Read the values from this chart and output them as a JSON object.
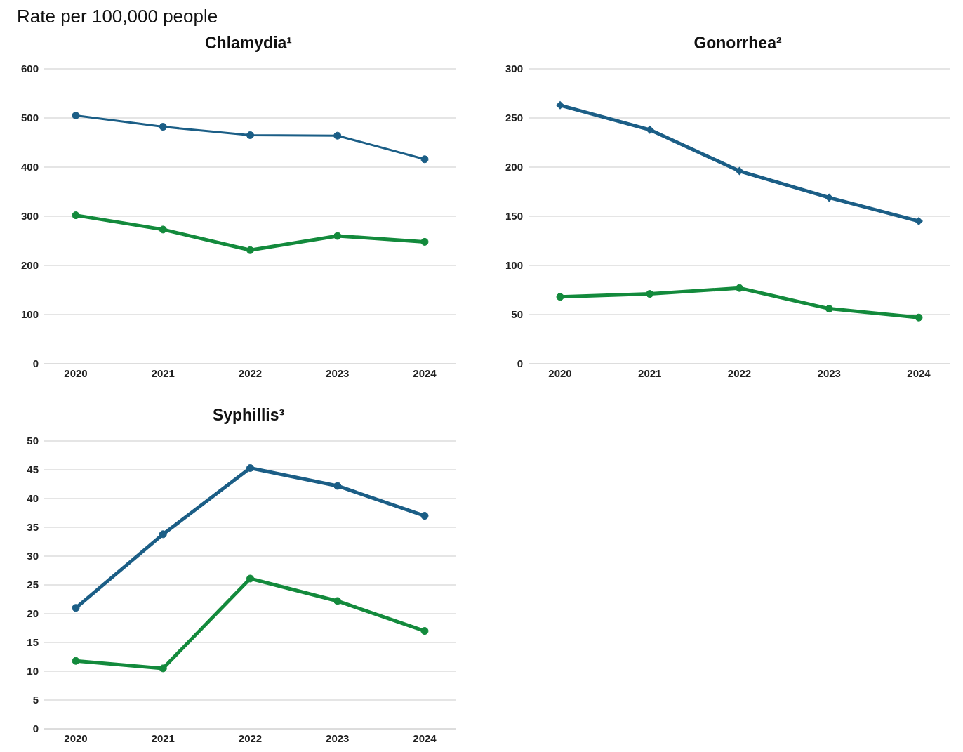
{
  "chart_data": [
    {
      "type": "line",
      "ylabel": "Rate per 100,000 people",
      "title": "Chlamydia¹",
      "categories": [
        "2020",
        "2021",
        "2022",
        "2023",
        "2024"
      ],
      "ylim": [
        0,
        600
      ],
      "yticks": [
        0,
        100,
        200,
        300,
        400,
        500,
        600
      ],
      "grid": "y",
      "legend": false,
      "marker": "circle",
      "line_style": "solid",
      "series": [
        {
          "color": "#1b5e86",
          "values": [
            505,
            482,
            465,
            464,
            416
          ]
        },
        {
          "color": "#138a3c",
          "values": [
            302,
            273,
            231,
            260,
            248
          ]
        }
      ]
    },
    {
      "type": "line",
      "title": "Gonorrhea²",
      "categories": [
        "2020",
        "2021",
        "2022",
        "2023",
        "2024"
      ],
      "ylim": [
        0,
        300
      ],
      "yticks": [
        0,
        50,
        100,
        150,
        200,
        250,
        300
      ],
      "grid": "y",
      "legend": false,
      "marker": "circle",
      "line_style": "solid",
      "series": [
        {
          "color": "#1b5e86",
          "values": [
            263,
            238,
            196,
            169,
            145
          ],
          "marker": "diamond"
        },
        {
          "color": "#138a3c",
          "values": [
            68,
            71,
            77,
            56,
            47
          ]
        }
      ]
    },
    {
      "type": "line",
      "title": "Syphillis³",
      "categories": [
        "2020",
        "2021",
        "2022",
        "2023",
        "2024"
      ],
      "ylim": [
        0,
        50
      ],
      "yticks": [
        0,
        5,
        10,
        15,
        20,
        25,
        30,
        35,
        40,
        45,
        50
      ],
      "grid": "y",
      "legend": false,
      "marker": "circle",
      "line_style": "solid",
      "series": [
        {
          "color": "#1b5e86",
          "values": [
            21,
            33.8,
            45.3,
            42.2,
            37
          ]
        },
        {
          "color": "#138a3c",
          "values": [
            11.8,
            10.5,
            26.1,
            22.2,
            17
          ]
        }
      ]
    }
  ]
}
